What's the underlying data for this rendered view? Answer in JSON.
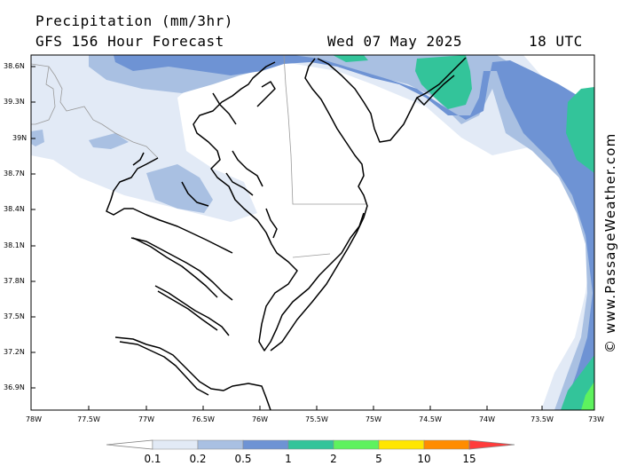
{
  "header": {
    "title": "Precipitation (mm/3hr)",
    "model": "GFS 156 Hour Forecast",
    "date": "Wed 07 May 2025",
    "time": "18 UTC"
  },
  "credit": "© www.PassageWeather.com",
  "axes": {
    "lat_ticks": [
      "38.6N",
      "39.3N",
      "39N",
      "38.7N",
      "38.4N",
      "38.1N",
      "37.8N",
      "37.5N",
      "37.2N",
      "36.9N"
    ],
    "lon_ticks": [
      "78W",
      "77.5W",
      "77W",
      "76.5W",
      "76W",
      "75.5W",
      "75W",
      "74.5W",
      "74W",
      "73.5W",
      "73W"
    ]
  },
  "colorbar": {
    "labels": [
      "0.1",
      "0.2",
      "0.5",
      "1",
      "2",
      "5",
      "10",
      "15"
    ],
    "colors": [
      "#ffffff",
      "#e2eaf6",
      "#a9c0e2",
      "#6e93d4",
      "#33c49a",
      "#5ef25e",
      "#ffe600",
      "#ff8c00",
      "#ff3b3b"
    ]
  }
}
